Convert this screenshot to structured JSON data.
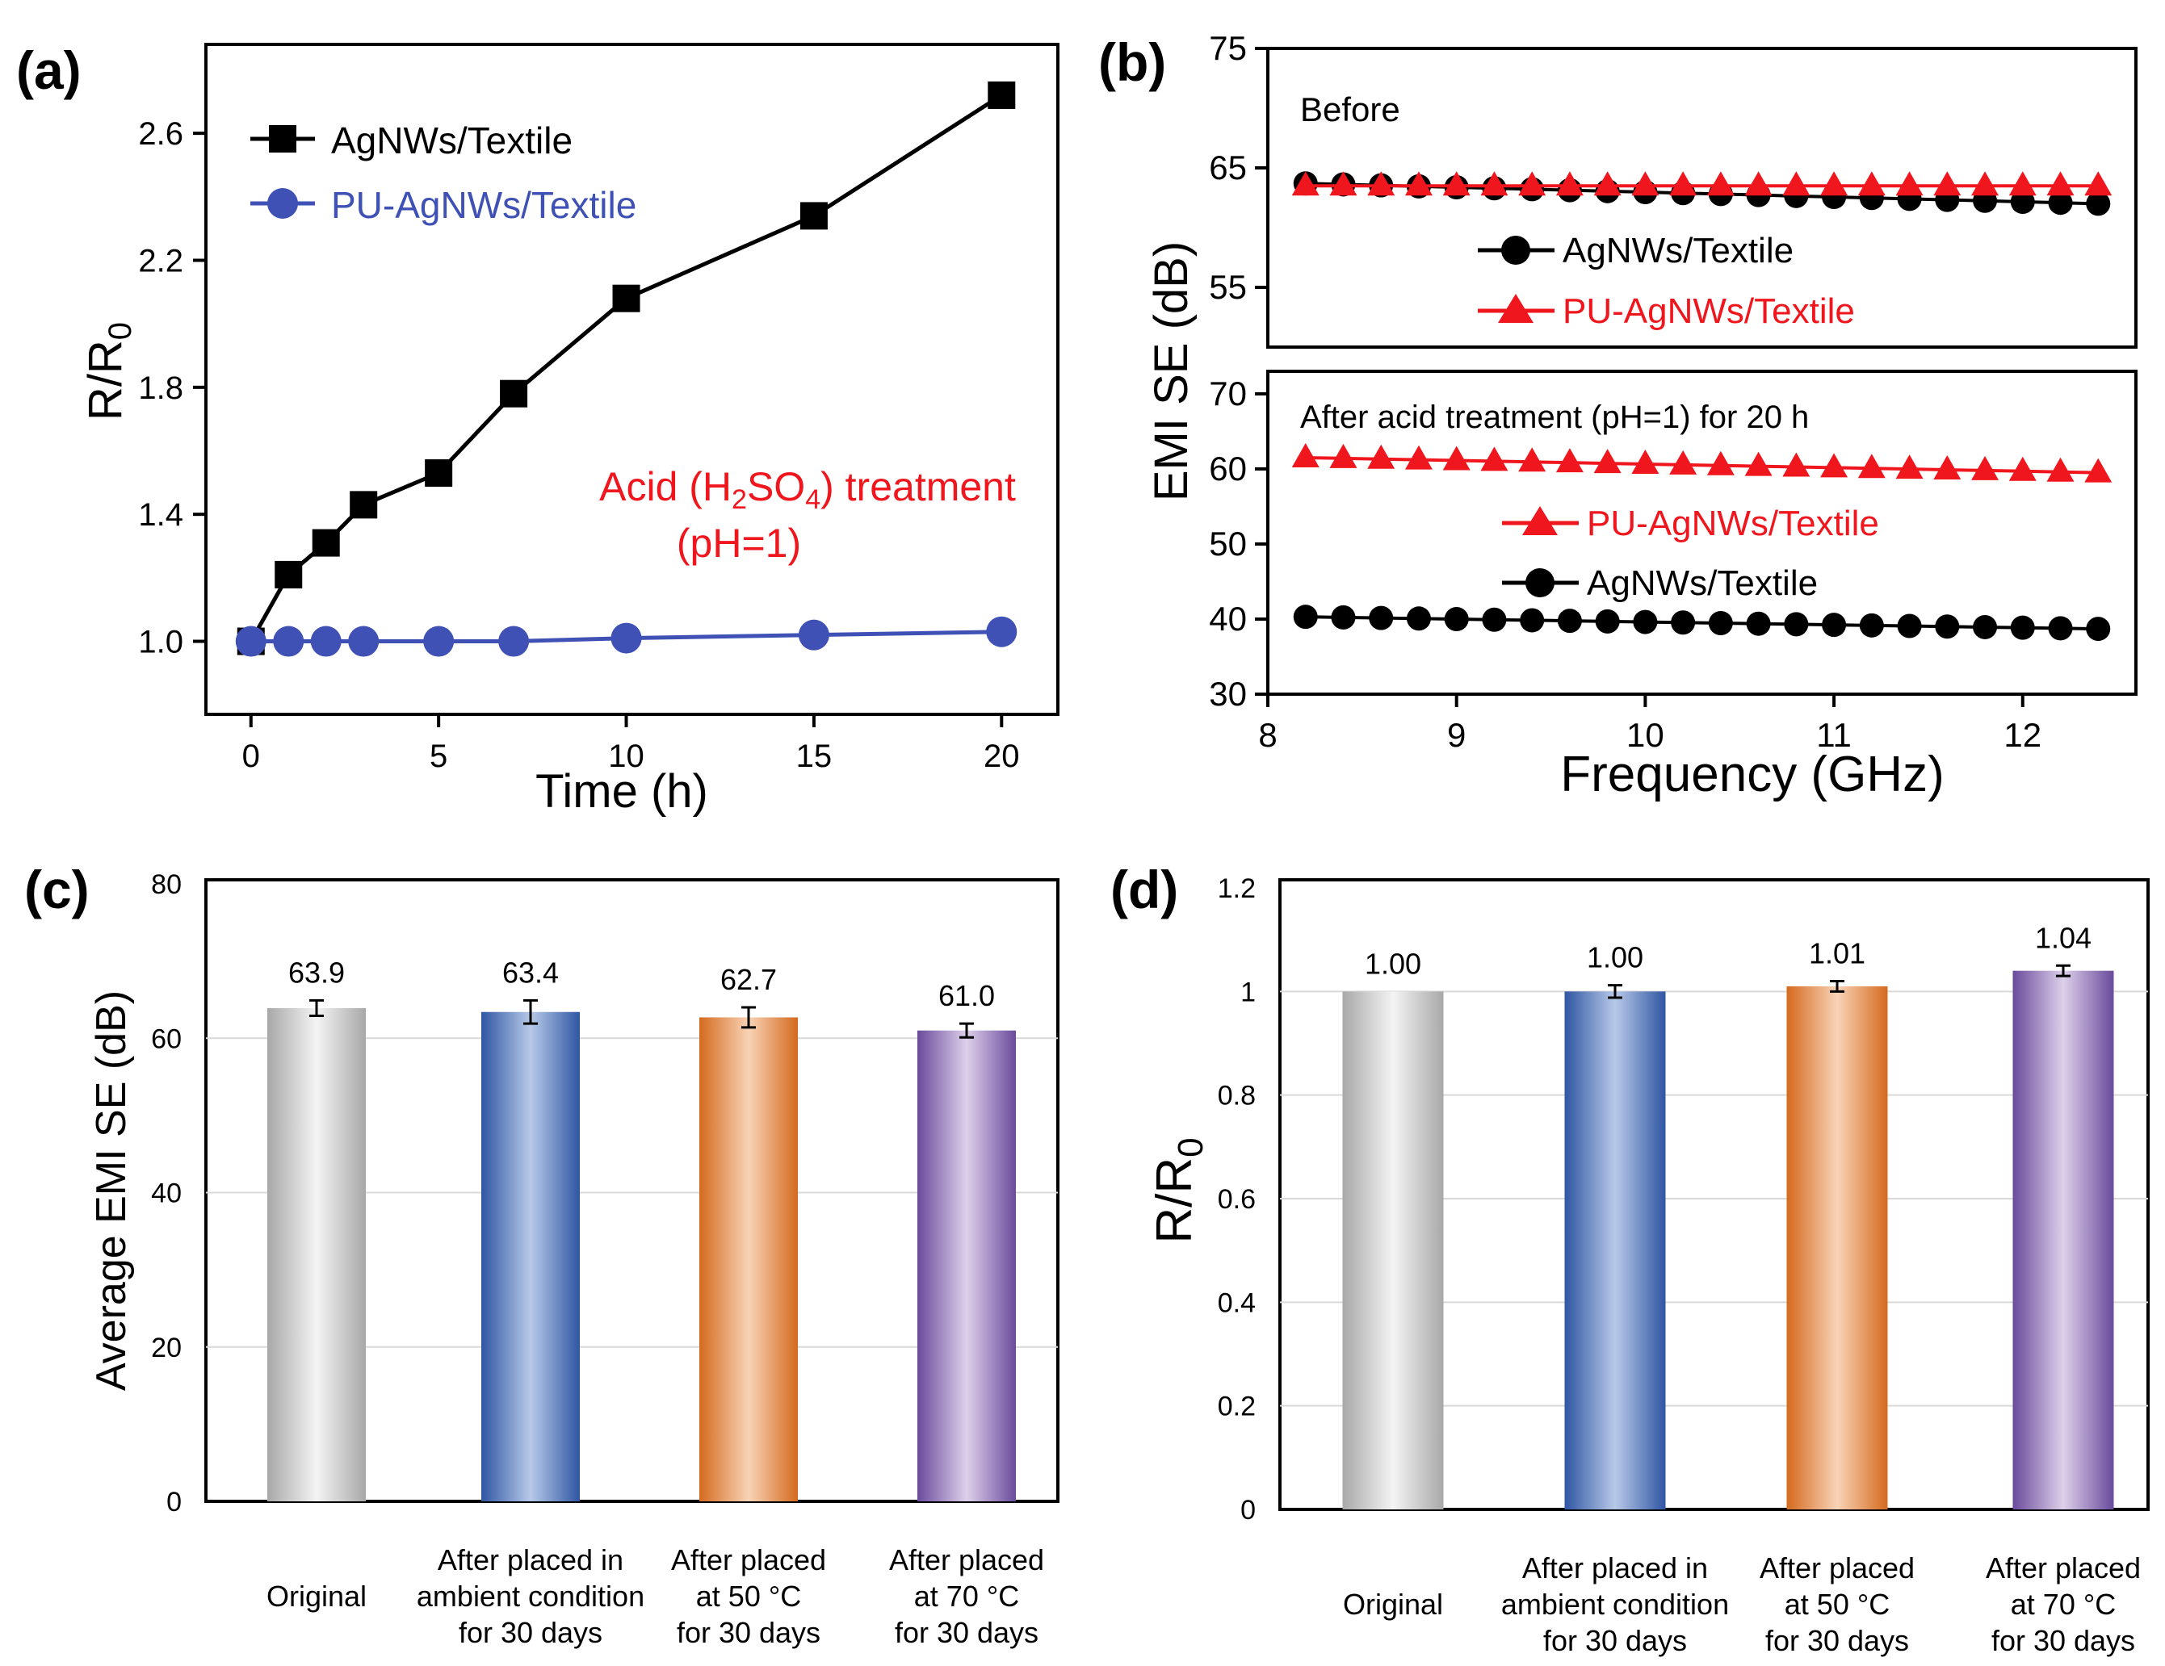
{
  "colors": {
    "black": "#000000",
    "blue": "#3f51b5",
    "red": "#f0161d",
    "gray_bar": "#bdbdbd",
    "blue_bar": "#3d66b0",
    "orange_bar": "#e0782a",
    "purple_bar": "#7a5aa6",
    "grid": "#d9d9d9"
  },
  "chart_data": [
    {
      "panel": "(a)",
      "type": "line",
      "xlabel": "Time (h)",
      "ylabel_main": "R/R",
      "ylabel_sub": "0",
      "xlim": [
        -1.2,
        21.5
      ],
      "ylim": [
        0.77,
        2.88
      ],
      "xticks": [
        0,
        5,
        10,
        15,
        20
      ],
      "yticks": [
        1.0,
        1.4,
        1.8,
        2.2,
        2.6
      ],
      "ytick_labels": [
        "1.0",
        "1.4",
        "1.8",
        "2.2",
        "2.6"
      ],
      "series": [
        {
          "name": "AgNWs/Textile",
          "marker": "square",
          "color": "#000000",
          "x": [
            0,
            1,
            2,
            3,
            5,
            7,
            10,
            15,
            20
          ],
          "y": [
            1.0,
            1.21,
            1.31,
            1.43,
            1.53,
            1.78,
            2.08,
            2.34,
            2.72
          ]
        },
        {
          "name": "PU-AgNWs/Textile",
          "marker": "circle",
          "color": "#3f51b5",
          "x": [
            0,
            1,
            2,
            3,
            5,
            7,
            10,
            15,
            20
          ],
          "y": [
            1.0,
            1.0,
            1.0,
            1.0,
            1.0,
            1.0,
            1.01,
            1.02,
            1.03
          ]
        }
      ],
      "annotation": {
        "line1_pre": "Acid (H",
        "sub1": "2",
        "mid": "SO",
        "sub2": "4",
        "line1_post": ") treatment",
        "line2": "(pH=1)"
      }
    },
    {
      "panel": "(b)",
      "type": "line",
      "xlabel": "Frequency (GHz)",
      "ylabel": "EMI SE (dB)",
      "xlim": [
        8,
        12.6
      ],
      "xticks": [
        8,
        9,
        10,
        11,
        12
      ],
      "subplots": [
        {
          "label": "Before",
          "ylim": [
            50,
            75
          ],
          "yticks": [
            55,
            65,
            75
          ],
          "series": [
            {
              "name": "AgNWs/Textile",
              "marker": "circle",
              "color": "#000000",
              "x_start": 8.2,
              "x_end": 12.4,
              "count": 22,
              "y_start": 63.7,
              "y_end": 62.0
            },
            {
              "name": "PU-AgNWs/Textile",
              "marker": "triangle",
              "color": "#f0161d",
              "x_start": 8.2,
              "x_end": 12.4,
              "count": 22,
              "y_start": 63.5,
              "y_end": 63.5
            }
          ]
        },
        {
          "label": "After acid treatment (pH=1) for 20 h",
          "ylim": [
            30,
            73
          ],
          "yticks": [
            30,
            40,
            50,
            60,
            70
          ],
          "series": [
            {
              "name": "PU-AgNWs/Textile",
              "marker": "triangle",
              "color": "#f0161d",
              "x_start": 8.2,
              "x_end": 12.4,
              "count": 22,
              "y_start": 61.5,
              "y_end": 59.5
            },
            {
              "name": "AgNWs/Textile",
              "marker": "circle",
              "color": "#000000",
              "x_start": 8.2,
              "x_end": 12.4,
              "count": 22,
              "y_start": 40.3,
              "y_end": 38.7
            }
          ]
        }
      ]
    },
    {
      "panel": "(c)",
      "type": "bar",
      "ylabel": "Average EMI SE (dB)",
      "ylim": [
        0,
        80
      ],
      "yticks": [
        0,
        20,
        40,
        60,
        80
      ],
      "grid": true,
      "categories": [
        [
          "Original"
        ],
        [
          "After placed in",
          "ambient condition",
          "for 30 days"
        ],
        [
          "After placed",
          "at 50 °C",
          "for 30 days"
        ],
        [
          "After placed",
          "at 70 °C",
          "for 30 days"
        ]
      ],
      "values": [
        63.9,
        63.4,
        62.7,
        61.0
      ],
      "value_labels": [
        "63.9",
        "63.4",
        "62.7",
        "61.0"
      ],
      "errors": [
        1.0,
        1.5,
        1.3,
        0.9
      ]
    },
    {
      "panel": "(d)",
      "type": "bar",
      "ylabel_main": "R/R",
      "ylabel_sub": "0",
      "ylim": [
        0,
        1.2
      ],
      "yticks": [
        0,
        0.2,
        0.4,
        0.6,
        0.8,
        1,
        1.2
      ],
      "ytick_labels": [
        "0",
        "0.2",
        "0.4",
        "0.6",
        "0.8",
        "1",
        "1.2"
      ],
      "grid": true,
      "categories": [
        [
          "Original"
        ],
        [
          "After placed in",
          "ambient condition",
          "for 30 days"
        ],
        [
          "After placed",
          "at 50 °C",
          "for 30 days"
        ],
        [
          "After placed",
          "at 70 °C",
          "for 30 days"
        ]
      ],
      "values": [
        1.0,
        1.0,
        1.01,
        1.04
      ],
      "value_labels": [
        "1.00",
        "1.00",
        "1.01",
        "1.04"
      ],
      "errors": [
        0,
        0.012,
        0.01,
        0.01
      ]
    }
  ]
}
